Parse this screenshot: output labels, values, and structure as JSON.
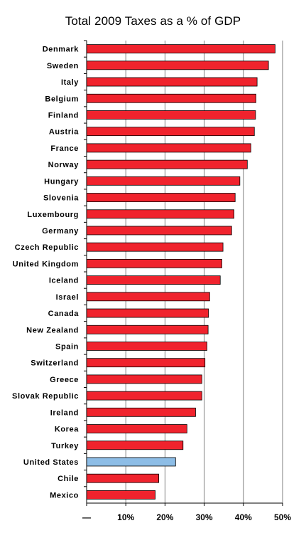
{
  "chart_data": {
    "type": "bar",
    "orientation": "horizontal",
    "title": "Total 2009 Taxes as a % of GDP",
    "xlabel": "",
    "ylabel": "",
    "xlim": [
      0,
      50
    ],
    "grid": "vertical",
    "categories": [
      "Denmark",
      "Sweden",
      "Italy",
      "Belgium",
      "Finland",
      "Austria",
      "France",
      "Norway",
      "Hungary",
      "Slovenia",
      "Luxembourg",
      "Germany",
      "Czech Republic",
      "United Kingdom",
      "Iceland",
      "Israel",
      "Canada",
      "New Zealand",
      "Spain",
      "Switzerland",
      "Greece",
      "Slovak Republic",
      "Ireland",
      "Korea",
      "Turkey",
      "United States",
      "Chile",
      "Mexico"
    ],
    "values": [
      48.1,
      46.4,
      43.5,
      43.2,
      43.1,
      42.8,
      41.9,
      41.0,
      39.1,
      37.9,
      37.6,
      37.0,
      34.8,
      34.5,
      34.1,
      31.4,
      31.1,
      31.0,
      30.7,
      30.2,
      29.4,
      29.4,
      27.8,
      25.6,
      24.6,
      22.7,
      18.4,
      17.5
    ],
    "x_ticks": [
      "—",
      "10%",
      "20%",
      "30%",
      "40%",
      "50%"
    ],
    "colors": {
      "default": "#f0232d",
      "highlight": "#8dbde6",
      "highlight_category": "United States",
      "grid": "#7f7f7f",
      "bar_border": "#000000"
    }
  }
}
